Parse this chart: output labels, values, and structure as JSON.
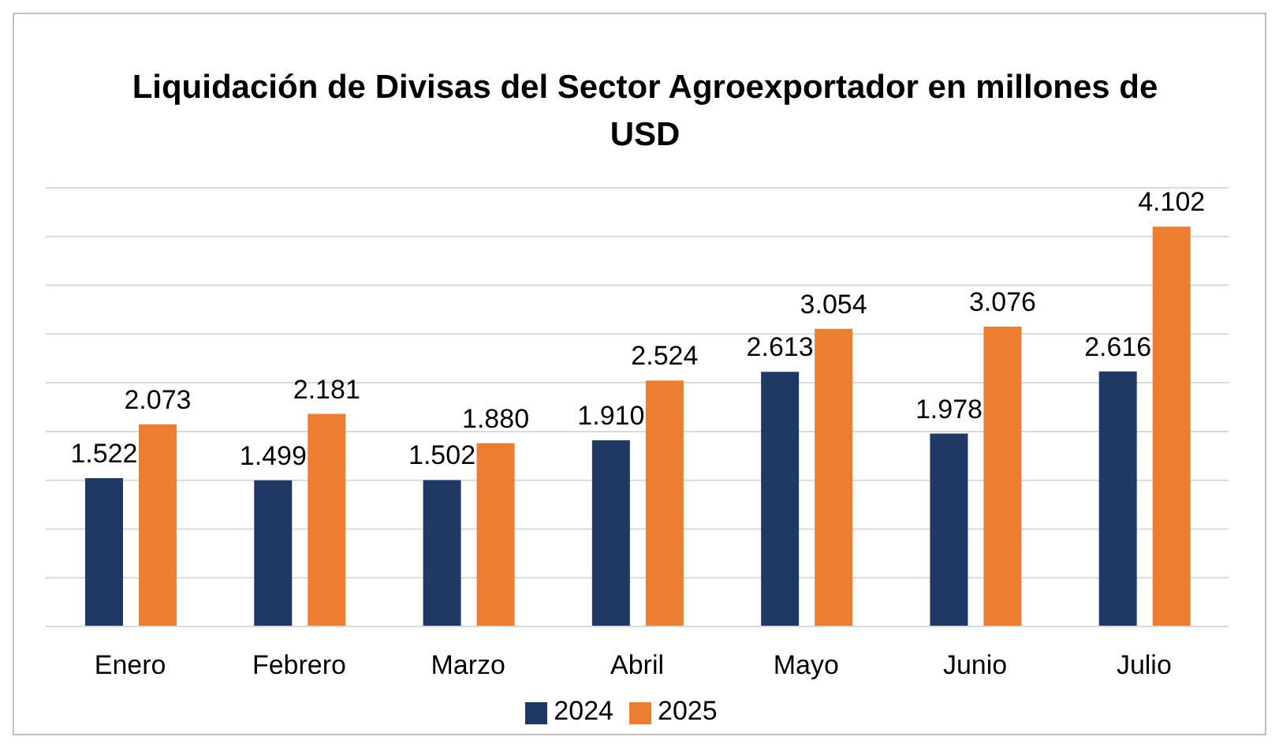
{
  "chart_data": {
    "type": "bar",
    "title": "Liquidación  de Divisas del Sector Agroexportador en millones de USD",
    "categories": [
      "Enero",
      "Febrero",
      "Marzo",
      "Abril",
      "Mayo",
      "Junio",
      "Julio"
    ],
    "series": [
      {
        "name": "2024",
        "color": "#1f3864",
        "values": [
          1522,
          1499,
          1502,
          1910,
          2613,
          1978,
          2616
        ],
        "value_labels": [
          "1.522",
          "1.499",
          "1.502",
          "1.910",
          "2.613",
          "1.978",
          "2.616"
        ]
      },
      {
        "name": "2025",
        "color": "#ed7d31",
        "values": [
          2073,
          2181,
          1880,
          2524,
          3054,
          3076,
          4102
        ],
        "value_labels": [
          "2.073",
          "2.181",
          "1.880",
          "2.524",
          "3.054",
          "3.076",
          "4.102"
        ]
      }
    ],
    "tick_labels": "x",
    "grid": "y",
    "legend": "bottom"
  }
}
